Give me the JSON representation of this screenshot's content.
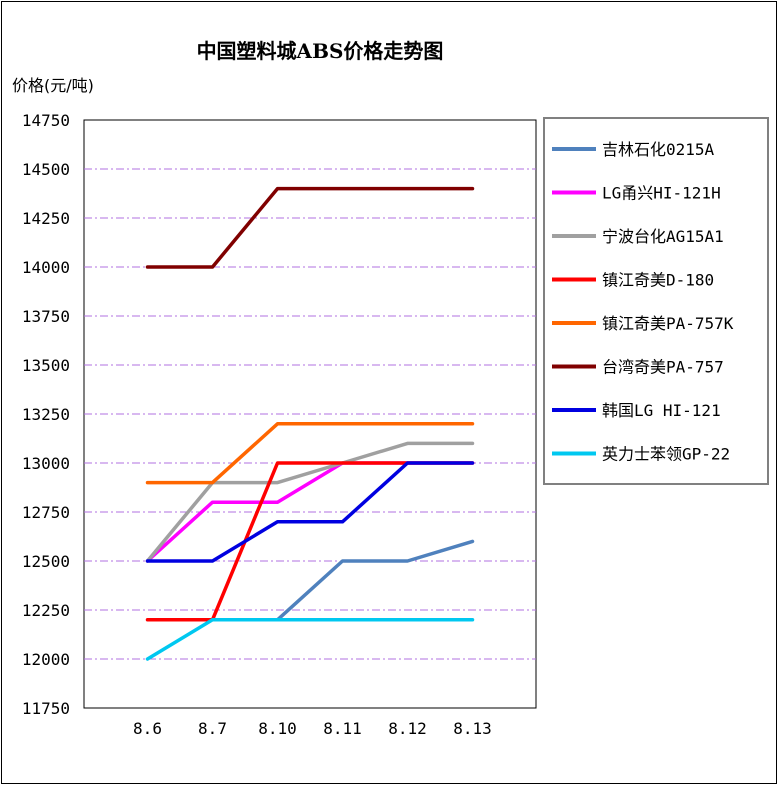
{
  "chart_data": {
    "type": "line",
    "title": "中国塑料城ABS价格走势图",
    "ylabel": "价格(元/吨)",
    "xlabel": "",
    "categories": [
      "8.6",
      "8.7",
      "8.10",
      "8.11",
      "8.12",
      "8.13"
    ],
    "ylim": [
      11750,
      14750
    ],
    "yticks": [
      11750,
      12000,
      12250,
      12500,
      12750,
      13000,
      13250,
      13500,
      13750,
      14000,
      14250,
      14500,
      14750
    ],
    "grid": true,
    "legend_position": "right",
    "series": [
      {
        "name": "吉林石化0215A",
        "color": "#4f81bd",
        "values": [
          null,
          12200,
          12200,
          12500,
          12500,
          12600
        ]
      },
      {
        "name": "LG甬兴HI-121H",
        "color": "#ff00ff",
        "values": [
          12500,
          12800,
          12800,
          13000,
          13000,
          13000
        ]
      },
      {
        "name": "宁波台化AG15A1",
        "color": "#a0a0a0",
        "values": [
          12500,
          12900,
          12900,
          13000,
          13100,
          13100
        ]
      },
      {
        "name": "镇江奇美D-180",
        "color": "#ff0000",
        "values": [
          12200,
          12200,
          13000,
          13000,
          13000,
          13000
        ]
      },
      {
        "name": "镇江奇美PA-757K",
        "color": "#ff6600",
        "values": [
          12900,
          12900,
          13200,
          13200,
          13200,
          13200
        ]
      },
      {
        "name": "台湾奇美PA-757",
        "color": "#800000",
        "values": [
          14000,
          14000,
          14400,
          14400,
          14400,
          14400
        ]
      },
      {
        "name": "韩国LG HI-121",
        "color": "#0000e0",
        "values": [
          12500,
          12500,
          12700,
          12700,
          13000,
          13000
        ]
      },
      {
        "name": "英力士苯领GP-22",
        "color": "#00c8f0",
        "values": [
          12000,
          12200,
          12200,
          12200,
          12200,
          12200
        ]
      }
    ]
  }
}
